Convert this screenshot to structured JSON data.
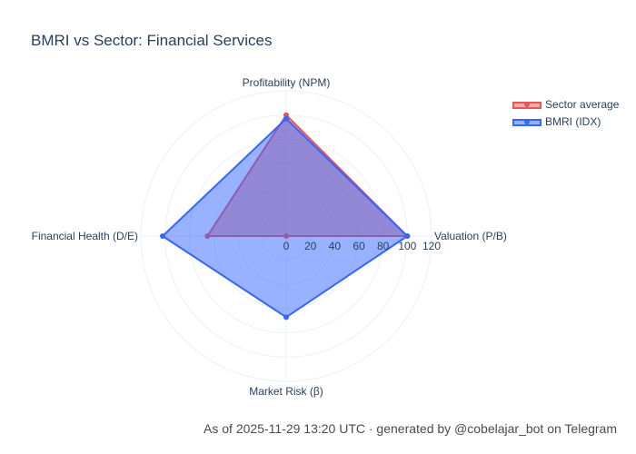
{
  "chart_data": {
    "type": "radar",
    "title": "BMRI vs Sector: Financial Services",
    "axes": [
      "Profitability (NPM)",
      "Valuation (P/B)",
      "Market Risk (β)",
      "Financial Health (D/E)"
    ],
    "radial_range": [
      0,
      120
    ],
    "radial_ticks": [
      "0",
      "20",
      "40",
      "60",
      "80",
      "100",
      "120"
    ],
    "grid": true,
    "legend_position": "top-right",
    "series": [
      {
        "name": "Sector average",
        "values": [
          100,
          100,
          0,
          65
        ],
        "color": "#e45756"
      },
      {
        "name": "BMRI (IDX)",
        "values": [
          97,
          100,
          67,
          102
        ],
        "color": "#3366ff"
      }
    ]
  },
  "footer": {
    "text": "As of 2025-11-29 13:20 UTC · generated by @cobelajar_bot on Telegram"
  }
}
